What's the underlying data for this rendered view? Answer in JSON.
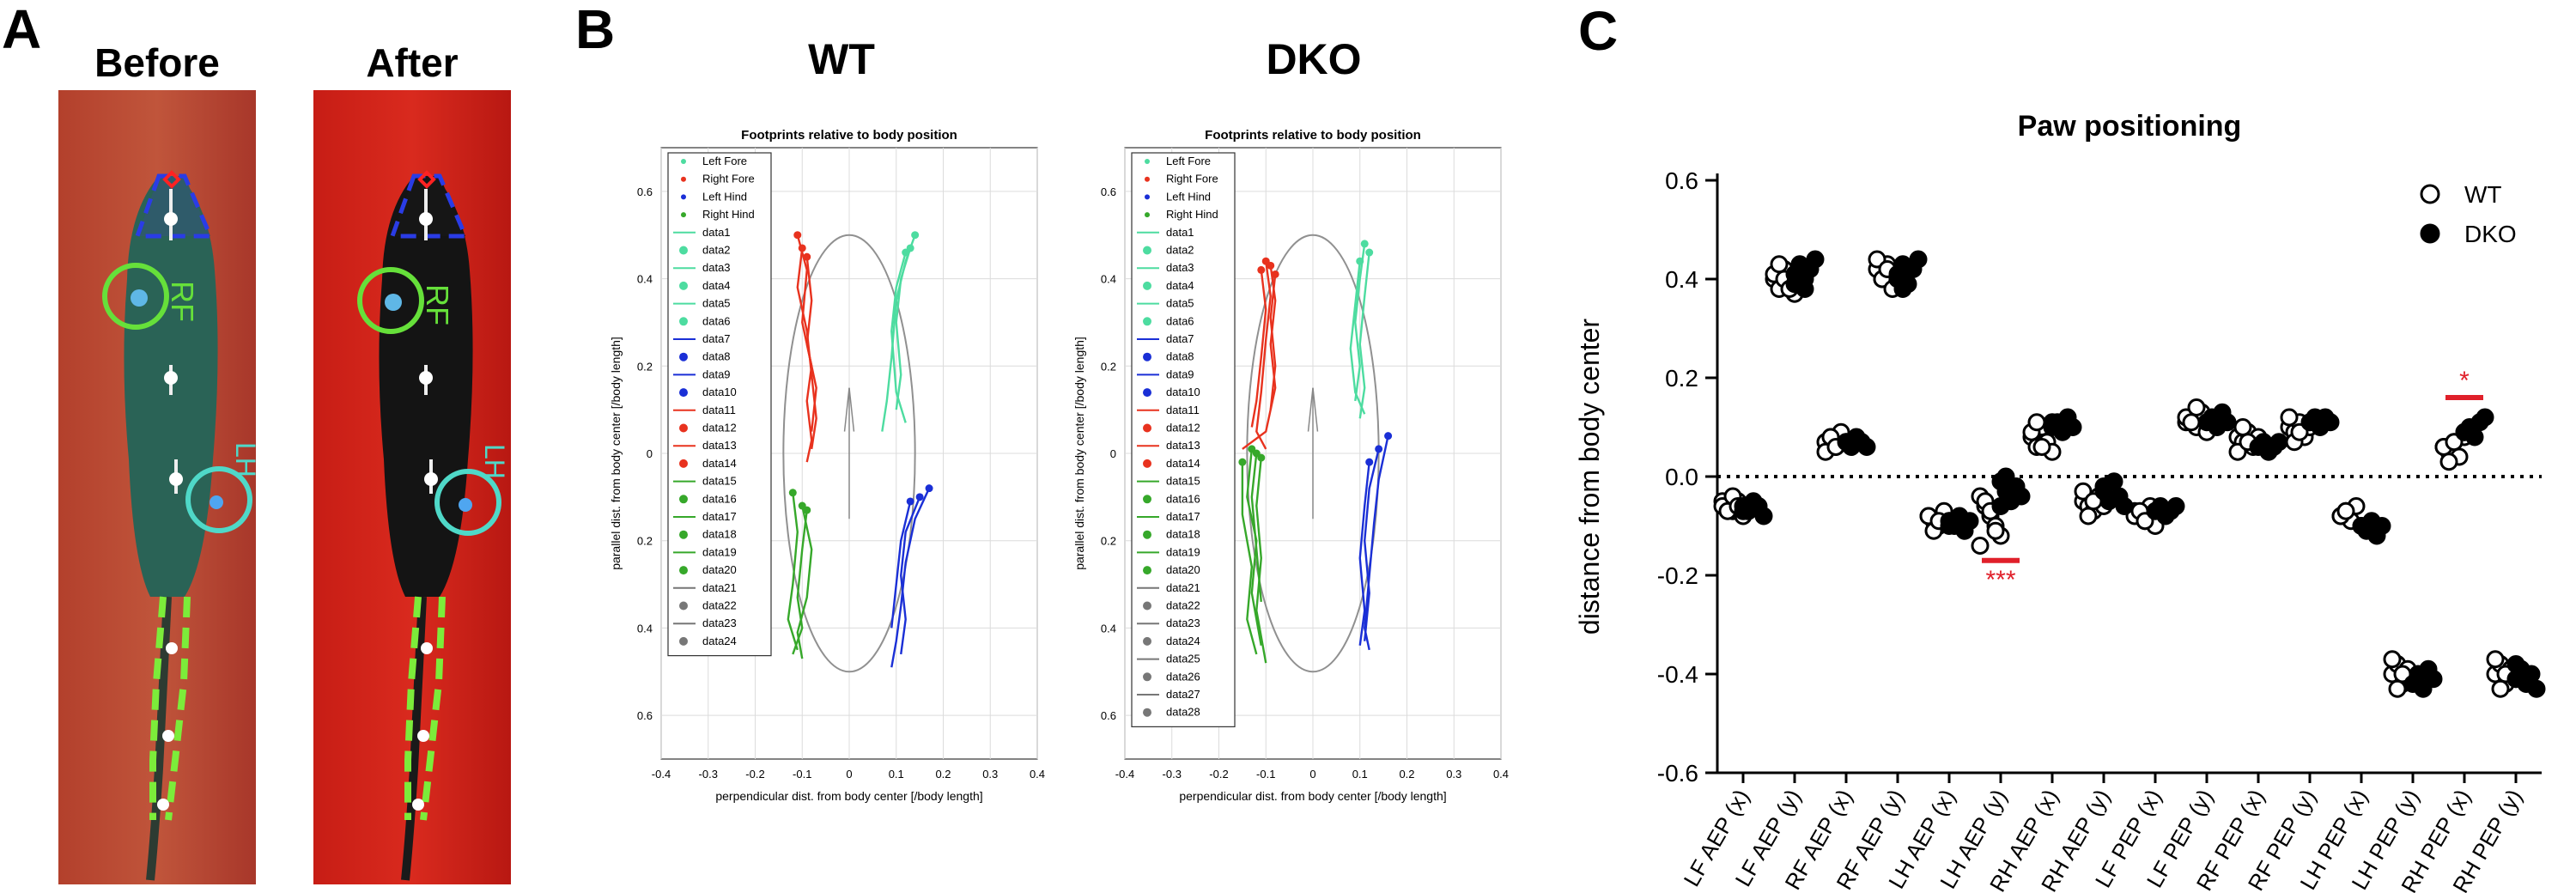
{
  "panels": {
    "a": {
      "letter": "A",
      "before": "Before",
      "after": "After",
      "rf": "RF",
      "lh": "LH"
    },
    "b": {
      "letter": "B",
      "plots": [
        {
          "group": "WT",
          "title": "Footprints relative to body position",
          "xlabel": "perpendicular dist. from body center [/body length]",
          "ylabel": "parallel dist. from body center [/body length]",
          "legend": [
            "Left Fore",
            "Right Fore",
            "Left Hind",
            "Right Hind",
            "data1",
            "data2",
            "data3",
            "data4",
            "data5",
            "data6",
            "data7",
            "data8",
            "data9",
            "data10",
            "data11",
            "data12",
            "data13",
            "data14",
            "data15",
            "data16",
            "data17",
            "data18",
            "data19",
            "data20",
            "data21",
            "data22",
            "data23",
            "data24"
          ]
        },
        {
          "group": "DKO",
          "title": "Footprints relative to body position",
          "xlabel": "perpendicular dist. from body center [/body length]",
          "ylabel": "parallel dist. from body center [/body length]",
          "legend": [
            "Left Fore",
            "Right Fore",
            "Left Hind",
            "Right Hind",
            "data1",
            "data2",
            "data3",
            "data4",
            "data5",
            "data6",
            "data7",
            "data8",
            "data9",
            "data10",
            "data11",
            "data12",
            "data13",
            "data14",
            "data15",
            "data16",
            "data17",
            "data18",
            "data19",
            "data20",
            "data21",
            "data22",
            "data23",
            "data24",
            "data25",
            "data26",
            "data27",
            "data28"
          ]
        }
      ],
      "xticks": [
        -0.4,
        -0.3,
        -0.2,
        -0.1,
        0,
        0.1,
        0.2,
        0.3,
        0.4
      ],
      "yticks": [
        0.6,
        0.4,
        0.2,
        0,
        0.2,
        0.4,
        0.6
      ],
      "colors": {
        "lf": "#4ddca0",
        "rf": "#e8321e",
        "lh": "#1a2fd6",
        "rh": "#36a82a",
        "ellipse": "#909090"
      }
    },
    "c": {
      "letter": "C"
    }
  },
  "chart_data": {
    "type": "scatter",
    "title": "Paw positioning",
    "ylabel": "distance from body center",
    "ylim": [
      -0.6,
      0.6
    ],
    "yticks": [
      -0.6,
      -0.4,
      -0.2,
      0.0,
      0.2,
      0.4,
      0.6
    ],
    "reference_line": 0.0,
    "categories": [
      "LF AEP (x)",
      "LF AEP (y)",
      "RF AEP (x)",
      "RF AEP (y)",
      "LH AEP (x)",
      "LH AEP (y)",
      "RH AEP (x)",
      "RH AEP (y)",
      "LF PEP (x)",
      "LF PEP (y)",
      "RF PEP (x)",
      "RF PEP (y)",
      "LH PEP (x)",
      "LH PEP (y)",
      "RH PEP (x)",
      "RH PEP (y)"
    ],
    "legend_position": "top-right",
    "series": [
      {
        "name": "WT",
        "marker": "open-circle",
        "values": [
          [
            -0.05,
            -0.06,
            -0.07,
            -0.05,
            -0.08,
            -0.06,
            -0.07,
            -0.04,
            -0.06
          ],
          [
            0.4,
            0.38,
            0.42,
            0.39,
            0.37,
            0.41,
            0.43,
            0.4,
            0.38
          ],
          [
            0.07,
            0.08,
            0.06,
            0.09,
            0.07,
            0.05,
            0.08,
            0.06
          ],
          [
            0.42,
            0.4,
            0.43,
            0.39,
            0.41,
            0.44,
            0.4,
            0.42,
            0.38
          ],
          [
            -0.08,
            -0.09,
            -0.1,
            -0.07,
            -0.09,
            -0.08,
            -0.11,
            -0.09
          ],
          [
            -0.04,
            -0.06,
            -0.08,
            -0.1,
            -0.12,
            -0.14,
            -0.05,
            -0.07,
            -0.11
          ],
          [
            0.08,
            0.06,
            0.1,
            0.07,
            0.05,
            0.09,
            0.11,
            0.06
          ],
          [
            -0.05,
            -0.06,
            -0.07,
            -0.04,
            -0.06,
            -0.03,
            -0.08,
            -0.05
          ],
          [
            -0.07,
            -0.08,
            -0.09,
            -0.06,
            -0.1,
            -0.08,
            -0.07,
            -0.09
          ],
          [
            0.11,
            0.12,
            0.1,
            0.13,
            0.09,
            0.12,
            0.11,
            0.14
          ],
          [
            0.08,
            0.07,
            0.09,
            0.06,
            0.08,
            0.05,
            0.1,
            0.07
          ],
          [
            0.1,
            0.09,
            0.11,
            0.08,
            0.1,
            0.12,
            0.07,
            0.09
          ],
          [
            -0.08,
            -0.07,
            -0.09,
            -0.06,
            -0.1,
            -0.08,
            -0.07
          ],
          [
            -0.4,
            -0.38,
            -0.42,
            -0.39,
            -0.41,
            -0.37,
            -0.43,
            -0.4
          ],
          [
            0.06,
            0.05,
            0.07,
            0.04,
            0.08,
            0.06,
            0.03,
            0.07
          ],
          [
            -0.4,
            -0.38,
            -0.42,
            -0.39,
            -0.41,
            -0.37,
            -0.43,
            -0.4
          ]
        ]
      },
      {
        "name": "DKO",
        "marker": "filled-circle",
        "values": [
          [
            -0.06,
            -0.07,
            -0.05,
            -0.06,
            -0.08,
            -0.07
          ],
          [
            0.41,
            0.43,
            0.4,
            0.42,
            0.44,
            0.39,
            0.41,
            0.38
          ],
          [
            0.07,
            0.06,
            0.08,
            0.07,
            0.06
          ],
          [
            0.41,
            0.43,
            0.39,
            0.42,
            0.44,
            0.4,
            0.38,
            0.42
          ],
          [
            -0.09,
            -0.1,
            -0.08,
            -0.11,
            -0.09,
            -0.1
          ],
          [
            -0.01,
            -0.03,
            -0.05,
            -0.02,
            -0.04,
            -0.06,
            0.0,
            -0.03
          ],
          [
            0.1,
            0.11,
            0.09,
            0.12,
            0.1,
            0.11
          ],
          [
            -0.03,
            -0.05,
            -0.01,
            -0.04,
            -0.06,
            -0.02
          ],
          [
            -0.07,
            -0.06,
            -0.08,
            -0.07,
            -0.06
          ],
          [
            0.11,
            0.12,
            0.1,
            0.13,
            0.11
          ],
          [
            0.06,
            0.07,
            0.05,
            0.06,
            0.07
          ],
          [
            0.11,
            0.12,
            0.1,
            0.12,
            0.11
          ],
          [
            -0.1,
            -0.11,
            -0.09,
            -0.12,
            -0.1
          ],
          [
            -0.42,
            -0.4,
            -0.43,
            -0.39,
            -0.41
          ],
          [
            0.09,
            0.1,
            0.08,
            0.11,
            0.12,
            0.09
          ],
          [
            -0.41,
            -0.39,
            -0.42,
            -0.4,
            -0.43,
            -0.38
          ]
        ]
      }
    ],
    "significance": [
      {
        "category": "LH AEP (y)",
        "label": "***",
        "y": -0.17
      },
      {
        "category": "RH PEP (x)",
        "label": "*",
        "y": 0.16
      }
    ],
    "significance_color": "#e0202a"
  }
}
